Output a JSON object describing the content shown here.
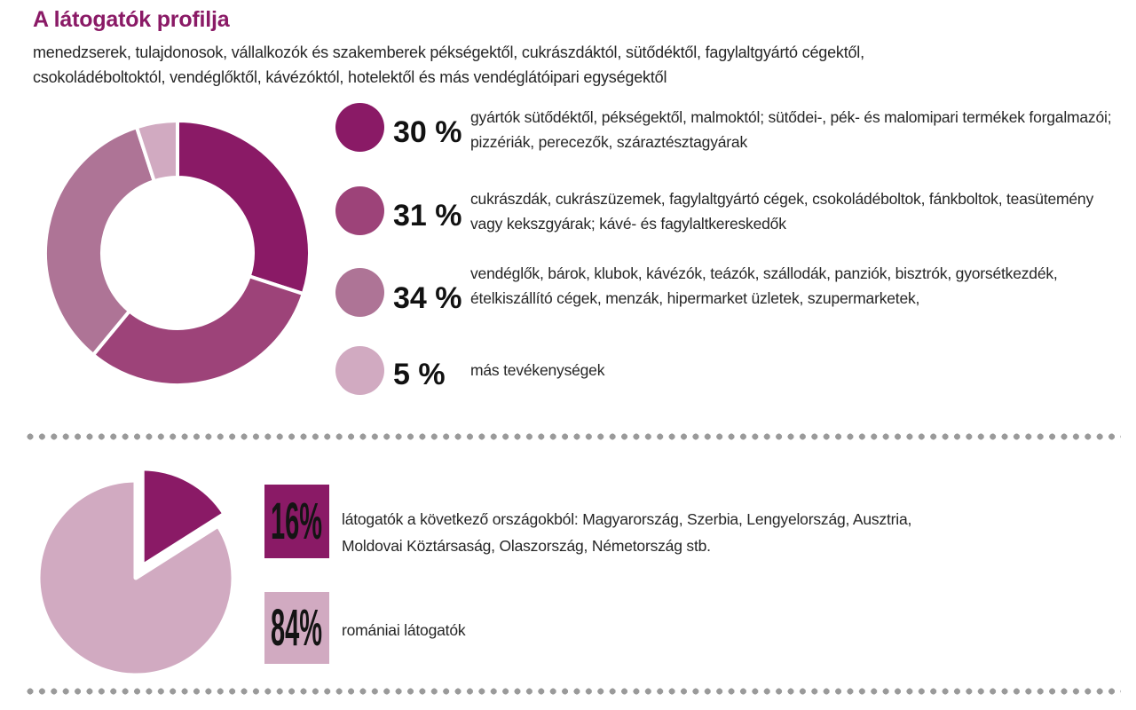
{
  "page": {
    "title": "A látogatók profilja",
    "subtitle_line1": "menedzserek, tulajdonosok, vállalkozók és szakemberek pékségektől, cukrászdáktól, sütődéktől, fagylaltgyártó cégektől,",
    "subtitle_line2": "csokoládéboltoktól, vendéglőktől, kávézóktól, hotelektől és más vendéglátóipari egységektől"
  },
  "colors": {
    "accent_dark_magenta": "#8a1a66",
    "accent_medium_purple": "#9d4379",
    "accent_mauve": "#ae7496",
    "accent_light_pink": "#d1aac1",
    "body_text": "#262626",
    "divider_dot_gray": "#9a9a9a",
    "background": "#ffffff"
  },
  "chart_data": [
    {
      "type": "pie",
      "variant": "donut",
      "title": "",
      "unit": "%",
      "start_angle_deg": 0,
      "direction": "clockwise",
      "values": [
        30,
        31,
        34,
        5
      ],
      "colors": [
        "#8a1a66",
        "#9d4379",
        "#ae7496",
        "#d1aac1"
      ],
      "legend_position": "right",
      "legend": [
        {
          "pct_label": "30 %",
          "value": 30,
          "description": "gyártók sütődéktől, pékségektől, malmoktól; sütődei-, pék- és malomipari termékek forgalmazói; pizzériák, perecezők, száraztésztagyárak"
        },
        {
          "pct_label": "31 %",
          "value": 31,
          "description": "cukrászdák, cukrászüzemek, fagylaltgyártó cégek, csokoládéboltok, fánkboltok, teasütemény vagy kekszgyárak; kávé- és fagylaltkereskedők"
        },
        {
          "pct_label": "34 %",
          "value": 34,
          "description": "vendéglők, bárok, klubok, kávézók, teázók, szállodák, panziók, bisztrók, gyorsétkezdék, ételkiszállító cégek, menzák, hipermarket üzletek, szupermarketek,"
        },
        {
          "pct_label": "5 %",
          "value": 5,
          "description": "más tevékenységek"
        }
      ]
    },
    {
      "type": "pie",
      "variant": "pie",
      "title": "",
      "unit": "%",
      "start_angle_deg": 0,
      "direction": "clockwise",
      "values": [
        16,
        84
      ],
      "colors": [
        "#8a1a66",
        "#d1aac1"
      ],
      "exploded_slice": 0,
      "legend_position": "right",
      "legend": [
        {
          "pct_label": "16%",
          "value": 16,
          "description": "látogatók a következő országokból: Magyarország, Szerbia, Lengyelország, Ausztria, Moldovai Köztársaság, Olaszország, Németország stb."
        },
        {
          "pct_label": "84%",
          "value": 84,
          "description": "romániai látogatók"
        }
      ]
    }
  ]
}
